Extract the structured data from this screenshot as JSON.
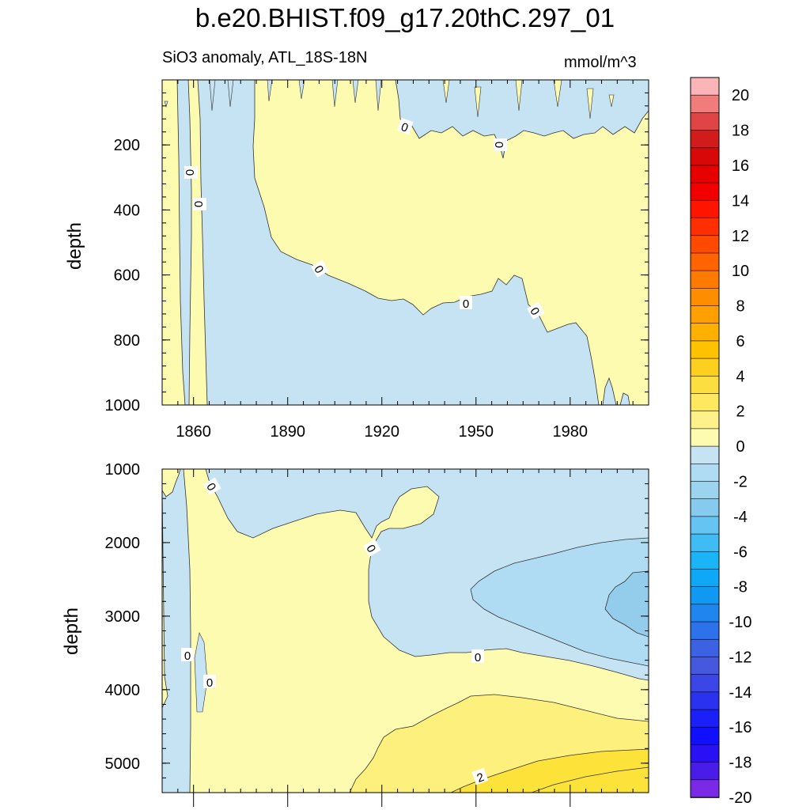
{
  "title": "b.e20.BHIST.f09_g17.20thC.297_01",
  "subtitle": "SiO3 anomaly, ATL_18S-18N",
  "units": "mmol/m^3",
  "colors": {
    "pos_0_2": "#fdfbb0",
    "pos_2_4": "#fdf07c",
    "pos_4_6": "#fde23a",
    "neg_0_2": "#c6e3f4",
    "neg_2_4": "#a9d8f1",
    "neg_4_6": "#94cdec"
  },
  "chart_data": [
    {
      "type": "heatmap",
      "panel": "upper",
      "title": "SiO3 anomaly, ATL_18S-18N",
      "units": "mmol/m^3",
      "xlabel": "",
      "ylabel": "depth",
      "xlim": [
        1850,
        2005
      ],
      "ylim": [
        1000,
        0
      ],
      "x_ticks": [
        1860,
        1890,
        1920,
        1950,
        1980
      ],
      "y_ticks": [
        200,
        400,
        600,
        800,
        1000
      ],
      "contour_labels": [
        "0",
        "0",
        "0",
        "0",
        "0",
        "0",
        "0"
      ],
      "regions": [
        {
          "sign": "positive",
          "range": [
            0,
            2
          ],
          "description": "upper ocean 1867-2005 above ~700 m; deep water after 1988"
        },
        {
          "sign": "negative",
          "range": [
            -2,
            0
          ],
          "description": "1858-1866 full depth; 1867-1988 below the zero contour"
        }
      ]
    },
    {
      "type": "heatmap",
      "panel": "lower",
      "title": "",
      "xlabel": "",
      "ylabel": "depth",
      "xlim": [
        1850,
        2005
      ],
      "ylim": [
        5400,
        1000
      ],
      "x_ticks": [
        1860,
        1890,
        1920,
        1950,
        1980
      ],
      "y_ticks": [
        1000,
        2000,
        3000,
        4000,
        5000
      ],
      "contour_labels": [
        "0",
        "0",
        "0",
        "0",
        "0",
        "2"
      ],
      "regions": [
        {
          "sign": "negative",
          "range": [
            -6,
            0
          ],
          "description": "mid-depth 1920-2005 between 1800 and 3800 m, minimum near -4 to -6 around 1995"
        },
        {
          "sign": "positive",
          "range": [
            0,
            6
          ],
          "description": "1862-1915 full column; deep water below 4000 m increasing to ~4 after 1980"
        }
      ]
    },
    {
      "type": "colorbar",
      "levels": [
        20,
        19,
        18,
        17,
        16,
        15,
        14,
        13,
        12,
        11,
        10,
        9,
        8,
        7,
        6,
        5,
        4,
        3,
        2,
        1,
        0,
        -1,
        -2,
        -3,
        -4,
        -5,
        -6,
        -7,
        -8,
        -9,
        -10,
        -11,
        -12,
        -13,
        -14,
        -15,
        -16,
        -17,
        -18,
        -19,
        -20
      ],
      "tick_labels": [
        "20",
        "18",
        "16",
        "14",
        "12",
        "10",
        "8",
        "6",
        "4",
        "2",
        "0",
        "-2",
        "-4",
        "-6",
        "-8",
        "-10",
        "-12",
        "-14",
        "-16",
        "-18",
        "-20"
      ],
      "colors": [
        "#fbb4b8",
        "#f07c7c",
        "#e04444",
        "#d21c1c",
        "#d80808",
        "#e60000",
        "#f20000",
        "#ff1400",
        "#ff2f00",
        "#ff4a00",
        "#ff6400",
        "#ff7a00",
        "#ff8d00",
        "#ffa000",
        "#ffb000",
        "#fec200",
        "#fdd020",
        "#fdde40",
        "#fde860",
        "#fef18a",
        "#fdfbb0",
        "#c6e3f4",
        "#b0dcf3",
        "#9cd3ef",
        "#86cbee",
        "#65c4f2",
        "#3fbcf4",
        "#1ab4f7",
        "#0ea8f6",
        "#1098f3",
        "#1f86ef",
        "#2d72ea",
        "#3c62e3",
        "#4658de",
        "#3c45e6",
        "#2a32ef",
        "#1a20f7",
        "#1010ff",
        "#2a10f4",
        "#4a1ce8",
        "#7a2ae6"
      ]
    }
  ]
}
